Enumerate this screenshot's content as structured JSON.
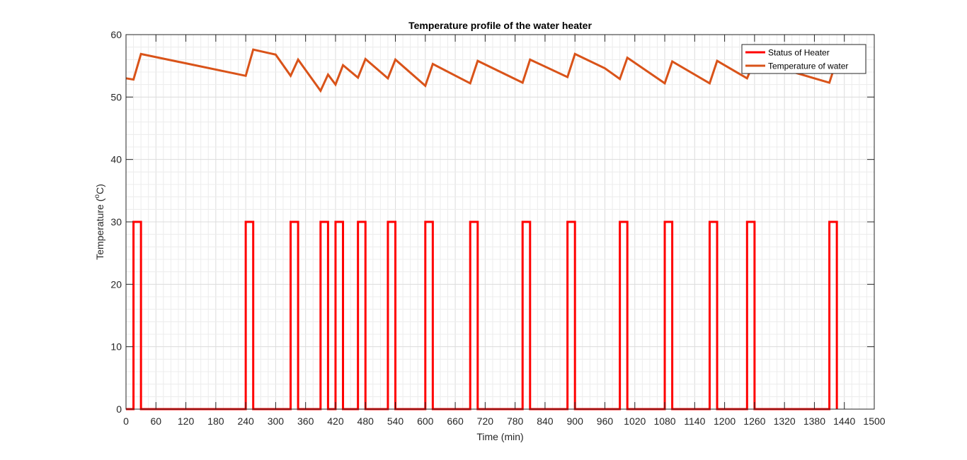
{
  "chart_data": {
    "type": "line",
    "title": "Temperature profile of the water heater",
    "xlabel": "Time (min)",
    "ylabel_main": "Temperature (",
    "ylabel_sup": "o",
    "ylabel_tail": "C)",
    "xlim": [
      0,
      1500
    ],
    "ylim": [
      0,
      60
    ],
    "x_ticks": [
      0,
      60,
      120,
      180,
      240,
      300,
      360,
      420,
      480,
      540,
      600,
      660,
      720,
      780,
      840,
      900,
      960,
      1020,
      1080,
      1140,
      1200,
      1260,
      1320,
      1380,
      1440,
      1500
    ],
    "y_ticks": [
      0,
      10,
      20,
      30,
      40,
      50,
      60
    ],
    "x_minor_step": 15,
    "y_minor_step": 2,
    "grid": true,
    "legend_position": "top-right",
    "series": [
      {
        "name": "Status of Heater",
        "color": "#ff0000",
        "x": [
          0,
          15,
          15,
          30,
          30,
          240,
          240,
          255,
          255,
          330,
          330,
          345,
          345,
          390,
          390,
          405,
          405,
          420,
          420,
          435,
          435,
          465,
          465,
          480,
          480,
          525,
          525,
          540,
          540,
          600,
          600,
          615,
          615,
          690,
          690,
          705,
          705,
          795,
          795,
          810,
          810,
          885,
          885,
          900,
          900,
          990,
          990,
          1005,
          1005,
          1080,
          1080,
          1095,
          1095,
          1170,
          1170,
          1185,
          1185,
          1245,
          1245,
          1260,
          1260,
          1410,
          1410,
          1425,
          1425
        ],
        "y": [
          0,
          0,
          30,
          30,
          0,
          0,
          30,
          30,
          0,
          0,
          30,
          30,
          0,
          0,
          30,
          30,
          0,
          0,
          30,
          30,
          0,
          0,
          30,
          30,
          0,
          0,
          30,
          30,
          0,
          0,
          30,
          30,
          0,
          0,
          30,
          30,
          0,
          0,
          30,
          30,
          0,
          0,
          30,
          30,
          0,
          0,
          30,
          30,
          0,
          0,
          30,
          30,
          0,
          0,
          30,
          30,
          0,
          0,
          30,
          30,
          0,
          0,
          30,
          30,
          0
        ]
      },
      {
        "name": "Temperature of water",
        "color": "#d95319",
        "x": [
          0,
          15,
          30,
          240,
          255,
          300,
          330,
          345,
          390,
          405,
          420,
          435,
          465,
          480,
          525,
          540,
          600,
          615,
          690,
          705,
          795,
          810,
          885,
          900,
          960,
          990,
          1005,
          1080,
          1095,
          1170,
          1185,
          1245,
          1260,
          1410,
          1425
        ],
        "y": [
          53.0,
          52.8,
          56.9,
          53.4,
          57.6,
          56.8,
          53.4,
          56.0,
          51.0,
          53.6,
          52.0,
          55.1,
          53.1,
          56.1,
          53.0,
          56.0,
          51.8,
          55.3,
          52.2,
          55.8,
          52.3,
          56.0,
          53.2,
          56.9,
          54.6,
          52.9,
          56.3,
          52.2,
          55.7,
          52.2,
          55.8,
          53.0,
          55.8,
          52.3,
          56.0
        ]
      }
    ]
  }
}
